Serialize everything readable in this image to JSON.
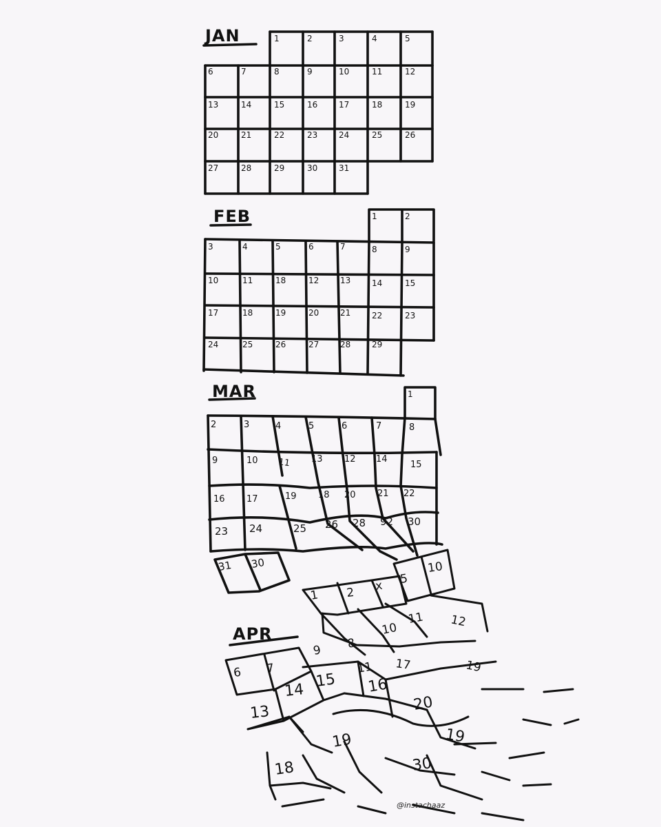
{
  "months": {
    "jan": {
      "title": "JAN",
      "days": [
        "1",
        "2",
        "3",
        "4",
        "5",
        "6",
        "7",
        "8",
        "9",
        "10",
        "11",
        "12",
        "13",
        "14",
        "15",
        "16",
        "17",
        "18",
        "19",
        "20",
        "21",
        "22",
        "23",
        "24",
        "25",
        "26",
        "27",
        "28",
        "29",
        "30",
        "31"
      ]
    },
    "feb": {
      "title": "FEB",
      "days": [
        "1",
        "2",
        "3",
        "4",
        "5",
        "6",
        "7",
        "8",
        "9",
        "10",
        "11",
        "18",
        "12",
        "13",
        "14",
        "15",
        "17",
        "18",
        "19",
        "20",
        "21",
        "22",
        "23",
        "24",
        "25",
        "26",
        "27",
        "28",
        "29"
      ]
    },
    "mar": {
      "title": "MAR",
      "days": [
        "1",
        "2",
        "3",
        "4",
        "5",
        "6",
        "7",
        "8",
        "9",
        "10",
        "11",
        "13",
        "12",
        "14",
        "15",
        "16",
        "17",
        "19",
        "18",
        "20",
        "21",
        "22",
        "23",
        "24",
        "25",
        "26",
        "28",
        "92",
        "30",
        "31",
        "30"
      ]
    },
    "apr": {
      "title": "APR",
      "numbers": [
        "1",
        "2",
        "x",
        "5",
        "10",
        "10",
        "11",
        "12",
        "8",
        "9",
        "6",
        "7",
        "11",
        "17",
        "19",
        "13",
        "14",
        "15",
        "16",
        "20",
        "19",
        "18",
        "30",
        "19"
      ]
    }
  },
  "credit": "@instachaaz"
}
